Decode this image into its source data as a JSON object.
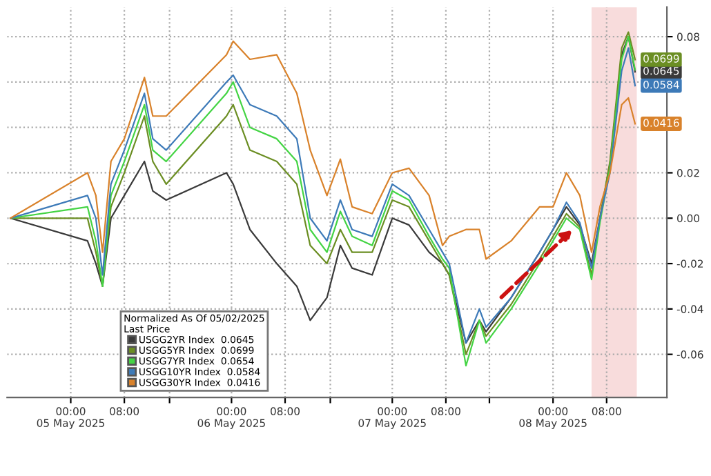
{
  "chart_data": {
    "type": "line",
    "x": [
      "2025-05-04T15:00",
      "2025-05-05T02:30",
      "2025-05-05T03:45",
      "2025-05-05T04:45",
      "2025-05-05T06:00",
      "2025-05-05T08:00",
      "2025-05-05T11:00",
      "2025-05-05T12:15",
      "2025-05-05T14:15",
      "2025-05-05T23:15",
      "2025-05-06T00:15",
      "2025-05-06T02:45",
      "2025-05-06T06:45",
      "2025-05-06T09:45",
      "2025-05-06T11:45",
      "2025-05-06T14:15",
      "2025-05-06T16:15",
      "2025-05-06T18:00",
      "2025-05-06T21:00",
      "2025-05-07T00:00",
      "2025-05-07T02:30",
      "2025-05-07T05:30",
      "2025-05-07T07:30",
      "2025-05-07T08:30",
      "2025-05-07T11:00",
      "2025-05-07T13:00",
      "2025-05-07T14:00",
      "2025-05-07T17:45",
      "2025-05-07T22:00",
      "2025-05-08T00:00",
      "2025-05-08T02:00",
      "2025-05-08T04:00",
      "2025-05-08T05:45",
      "2025-05-08T07:00",
      "2025-05-08T08:30",
      "2025-05-08T10:15",
      "2025-05-08T11:15",
      "2025-05-08T12:15"
    ],
    "series": [
      {
        "name": "USGG2YR Index  0.0645",
        "color": "#3a3a3a",
        "values": [
          0,
          -0.01,
          -0.02,
          -0.03,
          0.0,
          0.01,
          0.025,
          0.012,
          0.008,
          0.02,
          0.015,
          -0.005,
          -0.02,
          -0.03,
          -0.045,
          -0.035,
          -0.012,
          -0.022,
          -0.025,
          0.0,
          -0.003,
          -0.015,
          -0.02,
          -0.025,
          -0.055,
          -0.045,
          -0.05,
          -0.035,
          -0.015,
          -0.005,
          0.005,
          -0.003,
          -0.02,
          0.0,
          0.024,
          0.072,
          0.08,
          0.0645
        ],
        "value_labels": [
          null,
          null,
          null,
          null,
          null,
          null,
          null,
          null,
          null,
          null,
          null,
          null,
          null,
          null,
          null,
          null,
          null,
          null,
          null,
          null,
          null,
          null,
          null,
          null,
          null,
          null,
          null,
          null,
          null,
          null,
          null,
          null,
          null,
          null,
          null,
          null,
          null,
          "0.0645"
        ]
      },
      {
        "name": "USGG5YR Index  0.0699",
        "color": "#6b8e23",
        "values": [
          0,
          0.0,
          -0.015,
          -0.03,
          0.005,
          0.02,
          0.045,
          0.025,
          0.015,
          0.045,
          0.05,
          0.03,
          0.025,
          0.015,
          -0.012,
          -0.02,
          -0.005,
          -0.015,
          -0.015,
          0.008,
          0.005,
          -0.01,
          -0.02,
          -0.025,
          -0.06,
          -0.045,
          -0.052,
          -0.038,
          -0.018,
          -0.008,
          0.002,
          -0.004,
          -0.025,
          0.0,
          0.025,
          0.075,
          0.082,
          0.0699
        ],
        "value_labels": [
          null,
          null,
          null,
          null,
          null,
          null,
          null,
          null,
          null,
          null,
          null,
          null,
          null,
          null,
          null,
          null,
          null,
          null,
          null,
          null,
          null,
          null,
          null,
          null,
          null,
          null,
          null,
          null,
          null,
          null,
          null,
          null,
          null,
          null,
          null,
          null,
          null,
          "0.0699"
        ]
      },
      {
        "name": "USGG7YR Index  0.0654",
        "color": "#44d444",
        "values": [
          0,
          0.005,
          -0.01,
          -0.03,
          0.01,
          0.025,
          0.05,
          0.03,
          0.025,
          0.055,
          0.06,
          0.04,
          0.035,
          0.025,
          -0.005,
          -0.015,
          0.003,
          -0.008,
          -0.012,
          0.012,
          0.008,
          -0.008,
          -0.018,
          -0.022,
          -0.065,
          -0.045,
          -0.055,
          -0.04,
          -0.02,
          -0.01,
          0.0,
          -0.005,
          -0.027,
          -0.002,
          0.022,
          0.07,
          0.08,
          0.0654
        ]
      },
      {
        "name": "USGG10YR Index  0.0584",
        "color": "#3d7ab8",
        "values": [
          0,
          0.01,
          0.0,
          -0.025,
          0.015,
          0.03,
          0.055,
          0.035,
          0.03,
          0.06,
          0.063,
          0.05,
          0.045,
          0.035,
          0.0,
          -0.01,
          0.008,
          -0.005,
          -0.008,
          0.015,
          0.01,
          -0.005,
          -0.015,
          -0.02,
          -0.055,
          -0.04,
          -0.048,
          -0.035,
          -0.015,
          -0.005,
          0.007,
          -0.002,
          -0.022,
          0.0,
          0.02,
          0.065,
          0.075,
          0.0584
        ],
        "value_labels": [
          null,
          null,
          null,
          null,
          null,
          null,
          null,
          null,
          null,
          null,
          null,
          null,
          null,
          null,
          null,
          null,
          null,
          null,
          null,
          null,
          null,
          null,
          null,
          null,
          null,
          null,
          null,
          null,
          null,
          null,
          null,
          null,
          null,
          null,
          null,
          null,
          null,
          "0.0584"
        ]
      },
      {
        "name": "USGG30YR Index  0.0416",
        "color": "#d9822b",
        "values": [
          0,
          0.02,
          0.01,
          -0.015,
          0.025,
          0.035,
          0.062,
          0.045,
          0.045,
          0.072,
          0.078,
          0.07,
          0.072,
          0.055,
          0.03,
          0.01,
          0.026,
          0.005,
          0.002,
          0.02,
          0.022,
          0.01,
          -0.012,
          -0.008,
          -0.005,
          -0.005,
          -0.018,
          -0.01,
          0.005,
          0.005,
          0.02,
          0.01,
          -0.015,
          0.005,
          0.02,
          0.05,
          0.053,
          0.0416
        ],
        "value_labels": [
          null,
          null,
          null,
          null,
          null,
          null,
          null,
          null,
          null,
          null,
          null,
          null,
          null,
          null,
          null,
          null,
          null,
          null,
          null,
          null,
          null,
          null,
          null,
          null,
          null,
          null,
          null,
          null,
          null,
          null,
          null,
          null,
          null,
          null,
          null,
          null,
          null,
          "0.0416"
        ]
      }
    ],
    "xlim": [
      "2025-05-04T14:30",
      "2025-05-08T17:00"
    ],
    "xticks": [
      {
        "value": "2025-05-05T00:00",
        "label": "00:00\n05 May 2025"
      },
      {
        "value": "2025-05-05T08:00",
        "label": "08:00"
      },
      {
        "value": "2025-05-05T14:45",
        "label": null
      },
      {
        "value": "2025-05-06T00:00",
        "label": "00:00\n06 May 2025"
      },
      {
        "value": "2025-05-06T08:00",
        "label": "08:00"
      },
      {
        "value": "2025-05-06T14:45",
        "label": null
      },
      {
        "value": "2025-05-07T00:00",
        "label": "00:00\n07 May 2025"
      },
      {
        "value": "2025-05-07T08:00",
        "label": "08:00"
      },
      {
        "value": "2025-05-07T14:30",
        "label": null
      },
      {
        "value": "2025-05-08T00:00",
        "label": "00:00\n08 May 2025"
      },
      {
        "value": "2025-05-08T08:00",
        "label": "08:00"
      }
    ],
    "ylim": [
      -0.079,
      0.093
    ],
    "yticks": [
      {
        "value": -0.06,
        "label": "-0.06"
      },
      {
        "value": -0.04,
        "label": "-0.04"
      },
      {
        "value": -0.02,
        "label": "-0.02"
      },
      {
        "value": 0,
        "label": "0.00"
      },
      {
        "value": 0.02,
        "label": "0.02"
      },
      {
        "value": 0.04,
        "label": null
      },
      {
        "value": 0.06,
        "label": null
      },
      {
        "value": 0.08,
        "label": "0.08"
      }
    ],
    "bands": [
      {
        "axis": "x",
        "from": "2025-05-08T05:45",
        "to": "2025-05-08T12:30",
        "color": "#f4c4c4"
      }
    ],
    "grid": true,
    "legend": "bottom left",
    "legend_title": "Normalized As Of 05/02/2025\nLast Price",
    "line_style": "solid",
    "marker": "none"
  }
}
